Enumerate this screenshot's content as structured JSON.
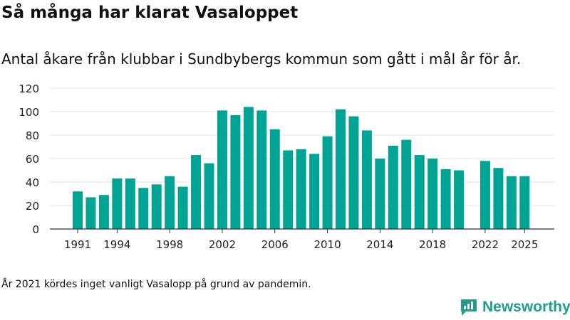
{
  "chart_data": {
    "type": "bar",
    "title": "Så många har klarat Vasaloppet",
    "subtitle": "Antal åkare från klubbar i Sundbybergs kommun som gått i mål år för år.",
    "xlabel": "",
    "ylabel": "",
    "ylim": [
      0,
      120
    ],
    "yticks": [
      0,
      20,
      40,
      60,
      80,
      100,
      120
    ],
    "xticks": [
      1991,
      1994,
      1998,
      2002,
      2006,
      2010,
      2014,
      2018,
      2022,
      2025
    ],
    "categories": [
      1991,
      1992,
      1993,
      1994,
      1995,
      1996,
      1997,
      1998,
      1999,
      2000,
      2001,
      2002,
      2003,
      2004,
      2005,
      2006,
      2007,
      2008,
      2009,
      2010,
      2011,
      2012,
      2013,
      2014,
      2015,
      2016,
      2017,
      2018,
      2019,
      2020,
      2021,
      2022,
      2023,
      2024,
      2025
    ],
    "values": [
      32,
      27,
      29,
      43,
      43,
      35,
      38,
      45,
      36,
      63,
      56,
      101,
      97,
      104,
      101,
      85,
      67,
      68,
      64,
      79,
      102,
      96,
      84,
      60,
      71,
      76,
      63,
      60,
      51,
      50,
      null,
      58,
      52,
      45,
      45
    ],
    "bar_color": "#00a494",
    "grid": true
  },
  "footnote": "År 2021 kördes inget vanligt Vasalopp på grund av pandemin.",
  "brand": {
    "name": "Newsworthy",
    "color": "#1f9e8a"
  }
}
